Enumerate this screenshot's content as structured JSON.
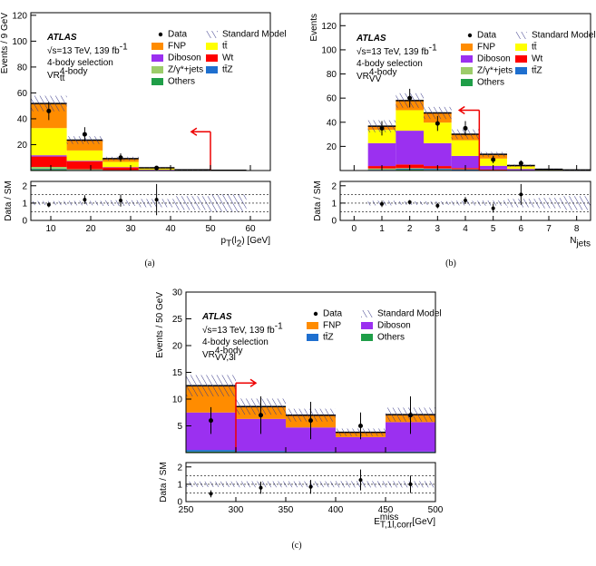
{
  "chart_data": [
    {
      "type": "stacked_histogram",
      "caption": "(a)",
      "experiment": "ATLAS",
      "energy": [
        {
          "text": "√s=13 TeV, 139 fb"
        },
        {
          "text": "-1",
          "pos": "sup"
        }
      ],
      "selection": "4-body selection",
      "region": [
        {
          "text": "VR"
        },
        {
          "text": "4-body",
          "pos": "sup"
        },
        {
          "text": "tt̄",
          "pos": "sub"
        }
      ],
      "y_label": "Events / 9 GeV",
      "x_label": [
        {
          "text": "p"
        },
        {
          "text": "T",
          "pos": "sub"
        },
        {
          "text": "(l"
        },
        {
          "text": "2",
          "pos": "sub"
        },
        {
          "text": ") [GeV]"
        }
      ],
      "bins": [
        5,
        14,
        23,
        32,
        41,
        50,
        59
      ],
      "xlim": [
        5,
        65
      ],
      "xticks": [
        10,
        20,
        30,
        40,
        50,
        60
      ],
      "ylim": [
        0,
        122
      ],
      "yticks": [
        20,
        40,
        60,
        80,
        100,
        120
      ],
      "series": [
        {
          "name": "FNP",
          "color": "#ff8c00",
          "values": [
            19,
            8,
            2.5,
            0.6,
            0.1,
            0.05
          ]
        },
        {
          "name": "tt̄",
          "color": "#ffff00",
          "values": [
            21,
            8,
            4,
            0.8,
            0.2,
            0.1
          ]
        },
        {
          "name": "Diboson",
          "color": "#9b30f0",
          "values": [
            1,
            0.5,
            0.3,
            0.2,
            0.1,
            0.05
          ]
        },
        {
          "name": "Wt",
          "color": "#ff0000",
          "values": [
            8,
            6,
            2,
            0.5,
            0.1,
            0
          ]
        },
        {
          "name": "Z/γ*+jets",
          "color": "#9ccc6a",
          "values": [
            1.5,
            0.5,
            0.2,
            0,
            0,
            0
          ]
        },
        {
          "name": "tt̄Z",
          "color": "#1e6fcf",
          "values": [
            0.3,
            0.2,
            0.1,
            0,
            0,
            0
          ]
        },
        {
          "name": "Others",
          "color": "#1f9e48",
          "values": [
            1,
            0.3,
            0.1,
            0,
            0,
            0
          ]
        }
      ],
      "sm": {
        "name": "Standard Model",
        "uncertainty": [
          6,
          3,
          1.5,
          0.5,
          0.2,
          0.1
        ]
      },
      "data": {
        "name": "Data",
        "values": [
          46,
          28,
          10,
          2,
          null,
          null
        ],
        "errors": [
          7,
          5.5,
          3.2,
          1.5,
          null,
          null
        ]
      },
      "cut": {
        "x": 50,
        "y": 30,
        "direction": "left"
      },
      "ratio": {
        "y_label": "Data / SM",
        "ylim": [
          0,
          2.25
        ],
        "yticks": [
          0,
          1,
          2
        ],
        "ref_lines": [
          0.5,
          1,
          1.5
        ],
        "values": [
          0.9,
          1.2,
          1.15,
          1.2,
          null,
          null
        ],
        "errors": [
          0.14,
          0.25,
          0.35,
          0.9,
          null,
          null
        ]
      }
    },
    {
      "type": "stacked_histogram",
      "caption": "(b)",
      "experiment": "ATLAS",
      "energy": [
        {
          "text": "√s=13 TeV, 139 fb"
        },
        {
          "text": "-1",
          "pos": "sup"
        }
      ],
      "selection": "4-body selection",
      "region": [
        {
          "text": "VR"
        },
        {
          "text": "4-body",
          "pos": "sup"
        },
        {
          "text": "VV",
          "pos": "sub"
        }
      ],
      "y_label": "Events",
      "x_label": [
        {
          "text": "N"
        },
        {
          "text": "jets",
          "pos": "sub"
        }
      ],
      "bins": [
        -0.5,
        0.5,
        1.5,
        2.5,
        3.5,
        4.5,
        5.5,
        6.5,
        7.5,
        8.5
      ],
      "xlim": [
        -0.5,
        8.5
      ],
      "xticks": [
        0,
        1,
        2,
        3,
        4,
        5,
        6,
        7,
        8
      ],
      "ylim": [
        0,
        130
      ],
      "yticks": [
        20,
        40,
        60,
        80,
        100,
        120
      ],
      "series": [
        {
          "name": "FNP",
          "color": "#ff8c00",
          "values": [
            0,
            3,
            8,
            8,
            5,
            3.5,
            0.8,
            0.2,
            0.1
          ]
        },
        {
          "name": "tt̄",
          "color": "#ffff00",
          "values": [
            0,
            11,
            17,
            17,
            13,
            6,
            2,
            0.4,
            0.3
          ]
        },
        {
          "name": "Diboson",
          "color": "#9b30f0",
          "values": [
            0,
            19,
            28,
            19,
            10,
            3,
            1,
            0.3,
            0.1
          ]
        },
        {
          "name": "Wt",
          "color": "#ff0000",
          "values": [
            0,
            2,
            3,
            2,
            1,
            0.5,
            0.2,
            0.1,
            0
          ]
        },
        {
          "name": "Z/γ*+jets",
          "color": "#9ccc6a",
          "values": [
            0,
            1,
            0.5,
            0.3,
            0.2,
            0,
            0,
            0,
            0
          ]
        },
        {
          "name": "tt̄Z",
          "color": "#1e6fcf",
          "values": [
            0,
            0.2,
            0.5,
            0.8,
            0.6,
            0.3,
            0.1,
            0,
            0
          ]
        },
        {
          "name": "Others",
          "color": "#1f9e48",
          "values": [
            0,
            0.5,
            1,
            0.6,
            0.3,
            0.1,
            0,
            0,
            0
          ]
        }
      ],
      "sm": {
        "name": "Standard Model",
        "uncertainty": [
          0,
          5,
          6,
          5,
          4,
          2,
          1,
          0.3,
          0.2
        ]
      },
      "data": {
        "name": "Data",
        "values": [
          null,
          35,
          60,
          39,
          35,
          9,
          6,
          null,
          null
        ],
        "errors": [
          null,
          6,
          7.7,
          6.2,
          6,
          3,
          2.4,
          null,
          null
        ]
      },
      "cut": {
        "x": 4.5,
        "y": 50,
        "direction": "left"
      },
      "ratio": {
        "y_label": "Data / SM",
        "ylim": [
          0,
          2.25
        ],
        "yticks": [
          0,
          1,
          2
        ],
        "ref_lines": [
          0.5,
          1,
          1.5
        ],
        "values": [
          null,
          0.95,
          1.05,
          0.85,
          1.15,
          0.7,
          1.5,
          null,
          null
        ],
        "errors": [
          null,
          0.18,
          0.13,
          0.15,
          0.2,
          0.25,
          0.6,
          null,
          null
        ]
      }
    },
    {
      "type": "stacked_histogram",
      "caption": "(c)",
      "experiment": "ATLAS",
      "energy": [
        {
          "text": "√s=13 TeV, 139 fb"
        },
        {
          "text": "-1",
          "pos": "sup"
        }
      ],
      "selection": "4-body selection",
      "region": [
        {
          "text": "VR"
        },
        {
          "text": "4-body",
          "pos": "sup"
        },
        {
          "text": "VV,3l",
          "pos": "sub"
        }
      ],
      "y_label": "Events / 50 GeV",
      "x_label": [
        {
          "text": "E"
        },
        {
          "text": "miss",
          "pos": "sup"
        },
        {
          "text": "T,1l,corr",
          "pos": "sub"
        },
        {
          "text": " [GeV]"
        }
      ],
      "bins": [
        250,
        300,
        350,
        400,
        450,
        500
      ],
      "xlim": [
        250,
        500
      ],
      "xticks": [
        250,
        300,
        350,
        400,
        450,
        500
      ],
      "ylim": [
        0,
        30
      ],
      "yticks": [
        5,
        10,
        15,
        20,
        25,
        30
      ],
      "series": [
        {
          "name": "FNP",
          "color": "#ff8c00",
          "values": [
            5,
            2.3,
            2.3,
            0.9,
            1.4
          ]
        },
        {
          "name": "Diboson",
          "color": "#9b30f0",
          "values": [
            7,
            6,
            4.5,
            2.8,
            5.5
          ]
        },
        {
          "name": "tt̄Z",
          "color": "#1e6fcf",
          "values": [
            0.3,
            0.2,
            0.1,
            0.1,
            0.1
          ]
        },
        {
          "name": "Others",
          "color": "#1f9e48",
          "values": [
            0.2,
            0.1,
            0.1,
            0,
            0.1
          ]
        }
      ],
      "sm": {
        "name": "Standard Model",
        "uncertainty": [
          2,
          1.5,
          1.2,
          0.7,
          1.3
        ]
      },
      "data": {
        "name": "Data",
        "values": [
          6,
          7,
          6,
          5,
          7
        ],
        "errors": [
          2.5,
          3.5,
          3.5,
          2.5,
          3.5
        ]
      },
      "cut": {
        "x": 300,
        "y": 13,
        "direction": "right"
      },
      "ratio": {
        "y_label": "Data / SM",
        "ylim": [
          0,
          2.25
        ],
        "yticks": [
          0,
          1,
          2
        ],
        "ref_lines": [
          0.5,
          1,
          1.5
        ],
        "values": [
          0.45,
          0.8,
          0.85,
          1.25,
          1.0
        ],
        "errors": [
          0.2,
          0.35,
          0.4,
          0.6,
          0.5
        ]
      }
    }
  ]
}
